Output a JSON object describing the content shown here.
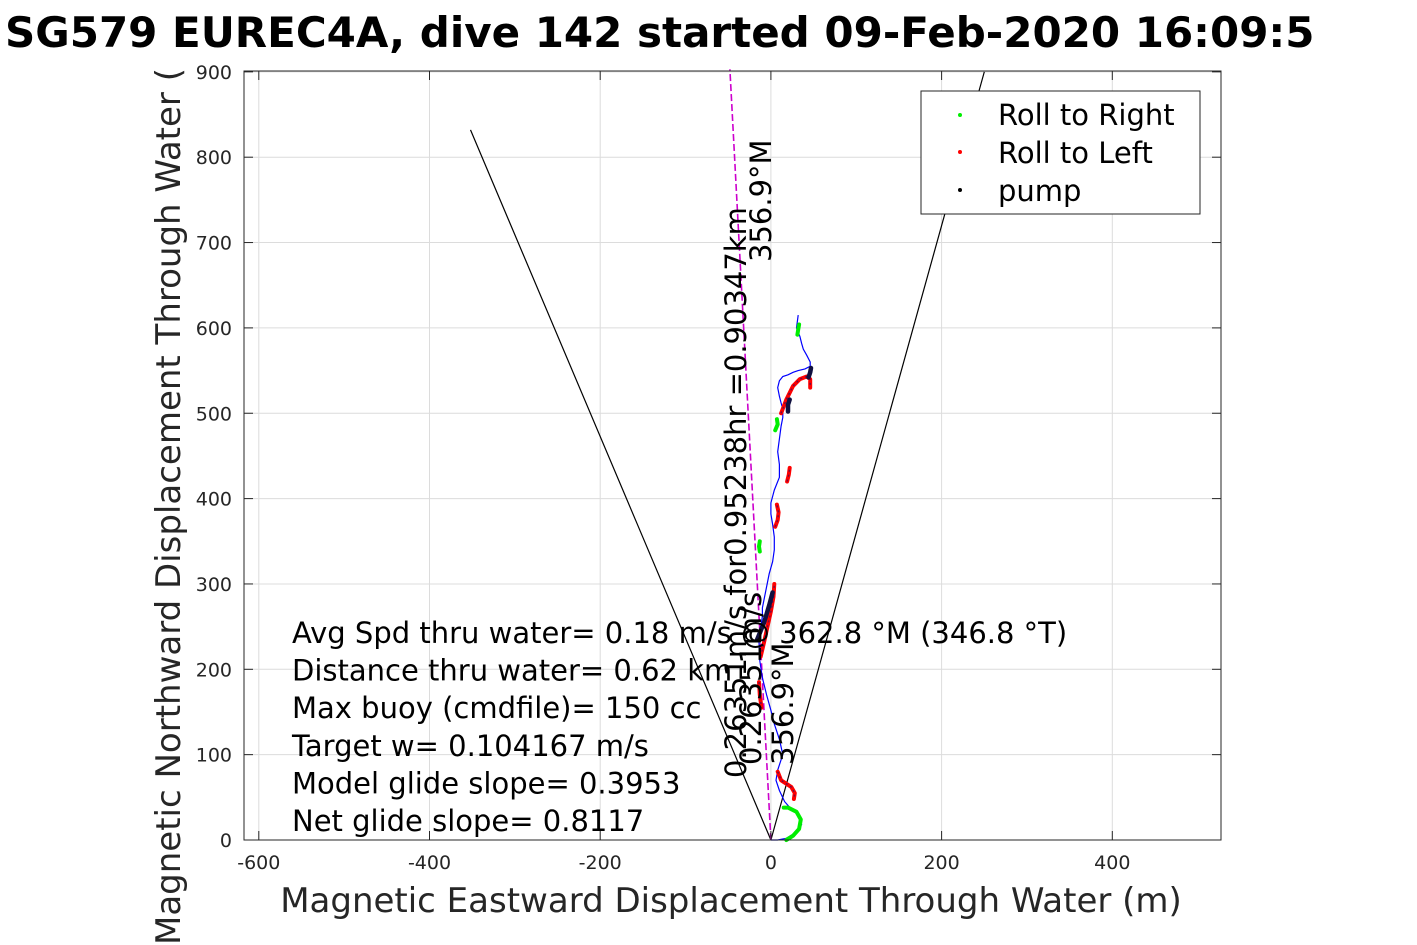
{
  "chart_data": {
    "type": "line",
    "title": "SG579 EUREC4A, dive 142 started 09-Feb-2020 16:09:5",
    "xlabel": "Magnetic Eastward Displacement Through Water (m)",
    "ylabel": "Magnetic Northward Displacement Through Water (",
    "xlim": [
      -600,
      500
    ],
    "ylim": [
      0,
      900
    ],
    "xticks": [
      -600,
      -400,
      -200,
      0,
      200,
      400
    ],
    "yticks": [
      0,
      100,
      200,
      300,
      400,
      500,
      600,
      700,
      800,
      900
    ],
    "grid": true,
    "legend_position": "top-right",
    "legend": [
      {
        "label": "Roll to Right",
        "color": "#00ee00"
      },
      {
        "label": "Roll to Left",
        "color": "#ff0000"
      },
      {
        "label": "pump",
        "color": "#000000"
      }
    ],
    "track_color": "#0000ff",
    "track": {
      "x": [
        0,
        8,
        18,
        28,
        36,
        34,
        24,
        16,
        10,
        6,
        8,
        14,
        10,
        4,
        0,
        -5,
        -10,
        -13,
        -14,
        -12,
        -10,
        -10,
        -8,
        -6,
        -4,
        -2,
        2,
        4,
        4,
        2,
        0,
        0,
        4,
        10,
        10,
        8,
        10,
        12,
        14,
        14,
        12,
        10,
        8,
        10,
        14,
        20,
        26,
        32,
        40,
        46,
        46,
        42,
        38,
        36,
        34,
        30,
        32
      ],
      "y": [
        0,
        0,
        2,
        8,
        18,
        28,
        36,
        45,
        58,
        70,
        82,
        100,
        118,
        136,
        152,
        170,
        190,
        210,
        232,
        250,
        262,
        272,
        282,
        292,
        302,
        312,
        326,
        340,
        355,
        370,
        382,
        395,
        410,
        425,
        440,
        455,
        470,
        485,
        495,
        505,
        512,
        520,
        530,
        538,
        543,
        545,
        548,
        550,
        552,
        555,
        560,
        568,
        575,
        582,
        590,
        600,
        615
      ]
    },
    "roll_right": [
      {
        "x": [
          18,
          26,
          33,
          35,
          30,
          20,
          15
        ],
        "y": [
          0,
          5,
          13,
          24,
          33,
          38,
          38
        ]
      },
      {
        "x": [
          -13,
          -14,
          -13
        ],
        "y": [
          338,
          344,
          350
        ]
      },
      {
        "x": [
          5,
          8,
          7
        ],
        "y": [
          480,
          487,
          493
        ]
      },
      {
        "x": [
          31,
          32,
          33
        ],
        "y": [
          592,
          598,
          604
        ]
      }
    ],
    "roll_left": [
      {
        "x": [
          8,
          12,
          18,
          24,
          28,
          27
        ],
        "y": [
          80,
          70,
          66,
          62,
          55,
          48
        ]
      },
      {
        "x": [
          -14,
          -13,
          -11
        ],
        "y": [
          185,
          170,
          155
        ]
      },
      {
        "x": [
          -12,
          -8,
          -4,
          0,
          3,
          4
        ],
        "y": [
          215,
          232,
          250,
          268,
          285,
          300
        ]
      },
      {
        "x": [
          5,
          8,
          9,
          7
        ],
        "y": [
          367,
          375,
          384,
          393
        ]
      },
      {
        "x": [
          19,
          21,
          22
        ],
        "y": [
          420,
          428,
          436
        ]
      },
      {
        "x": [
          12,
          18,
          26,
          34,
          42,
          46,
          46
        ],
        "y": [
          500,
          516,
          532,
          540,
          543,
          540,
          530
        ]
      }
    ],
    "pump": [
      {
        "x": [
          -16,
          -8,
          -2,
          2
        ],
        "y": [
          235,
          255,
          275,
          290
        ]
      },
      {
        "x": [
          20,
          20,
          22
        ],
        "y": [
          502,
          510,
          516
        ]
      },
      {
        "x": [
          44,
          46,
          47
        ],
        "y": [
          542,
          548,
          553
        ]
      }
    ],
    "heading_line": {
      "x": [
        0,
        -48
      ],
      "y": [
        0,
        903
      ],
      "color": "#cc00cc"
    },
    "cone_lines": [
      {
        "x": [
          0,
          -352
        ],
        "y": [
          0,
          832
        ]
      },
      {
        "x": [
          0,
          250
        ],
        "y": [
          0,
          900
        ]
      }
    ],
    "heading_annotation": {
      "line1": "0.26351m/s for0.95238hr =0.90347km",
      "line2": "356.9°M"
    },
    "lower_annotation": {
      "line1": "0.26351m/s",
      "line2": "356.9°M"
    },
    "stats": [
      "Avg Spd thru water=  0.18 m/s @ 362.8 °M (346.8 °T)",
      "Distance thru water=  0.62 km",
      "Max buoy (cmdfile)= 150 cc",
      "Target w= 0.104167 m/s",
      "Model glide slope= 0.3953",
      "Net glide slope= 0.8117"
    ]
  }
}
